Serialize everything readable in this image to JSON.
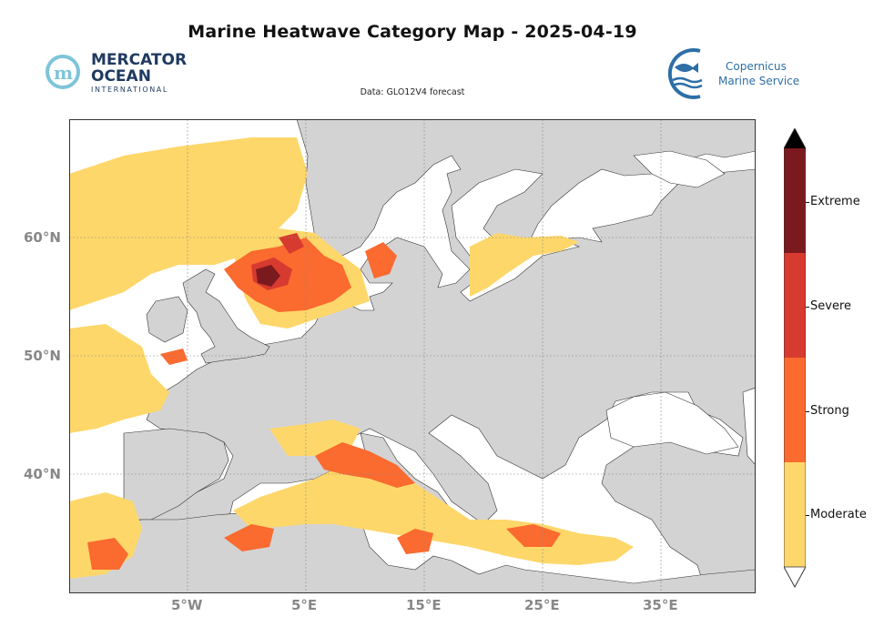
{
  "title": "Marine Heatwave Category Map - 2025-04-19",
  "subtitle": "Data: GLO12V4 forecast",
  "logos": {
    "mercator": {
      "line1": "MERCATOR",
      "line2": "OCEAN",
      "line3": "INTERNATIONAL"
    },
    "copernicus": {
      "line1": "Copernicus",
      "line2": "Marine Service"
    }
  },
  "axes": {
    "lat_labels": [
      "60°N",
      "50°N",
      "40°N"
    ],
    "lon_labels": [
      "5°W",
      "5°E",
      "15°E",
      "25°E",
      "35°E"
    ]
  },
  "colorbar": {
    "categories": [
      {
        "label": "Extreme",
        "color": "#7b1a1e"
      },
      {
        "label": "Severe",
        "color": "#d73a2f"
      },
      {
        "label": "Strong",
        "color": "#fb6a2f"
      },
      {
        "label": "Moderate",
        "color": "#fed76a"
      }
    ],
    "over_color": "#000000",
    "under_color": "#ffffff"
  },
  "colors": {
    "land": "#d3d3d3",
    "ocean_no_event": "#ffffff",
    "grid": "#8a8a8a"
  }
}
